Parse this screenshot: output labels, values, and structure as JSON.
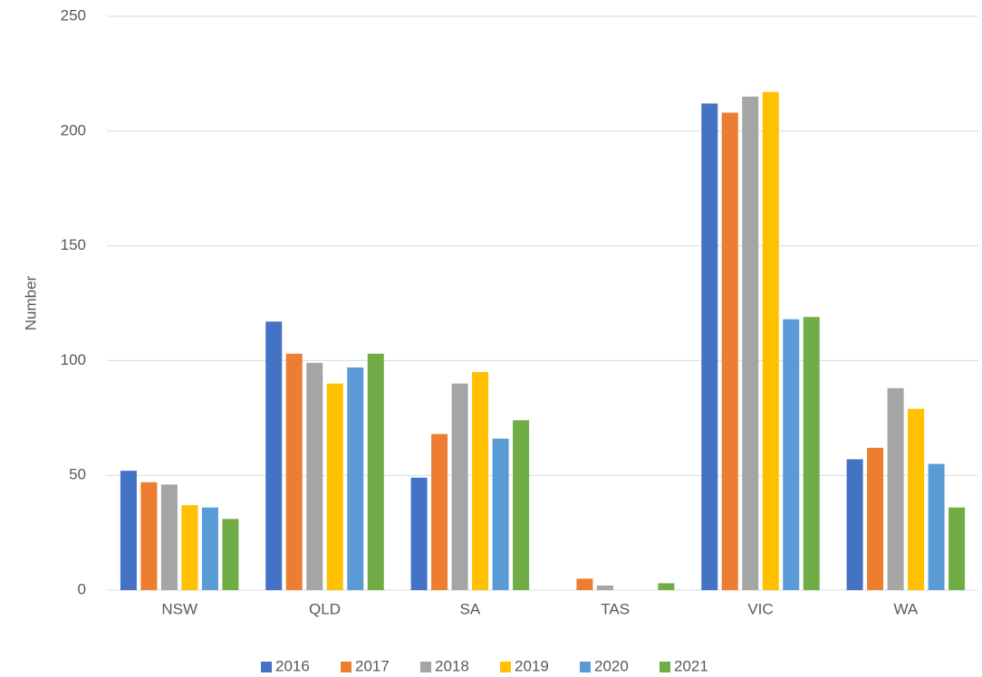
{
  "chart_data": {
    "type": "bar",
    "y_label": "Number",
    "categories": [
      "NSW",
      "QLD",
      "SA",
      "TAS",
      "VIC",
      "WA"
    ],
    "series": [
      {
        "name": "2016",
        "color": "#4472c4",
        "values": [
          52,
          117,
          49,
          0,
          212,
          57
        ]
      },
      {
        "name": "2017",
        "color": "#ed7d31",
        "values": [
          47,
          103,
          68,
          5,
          208,
          62
        ]
      },
      {
        "name": "2018",
        "color": "#a5a5a5",
        "values": [
          46,
          99,
          90,
          2,
          215,
          88
        ]
      },
      {
        "name": "2019",
        "color": "#ffc000",
        "values": [
          37,
          90,
          95,
          0,
          217,
          79
        ]
      },
      {
        "name": "2020",
        "color": "#5b9bd5",
        "values": [
          36,
          97,
          66,
          0,
          118,
          55
        ]
      },
      {
        "name": "2021",
        "color": "#70ad47",
        "values": [
          31,
          103,
          74,
          3,
          119,
          36
        ]
      }
    ],
    "ylim": [
      0,
      250
    ],
    "yticks": [
      0,
      50,
      100,
      150,
      200,
      250
    ],
    "grid": true,
    "legend": "bottom"
  }
}
